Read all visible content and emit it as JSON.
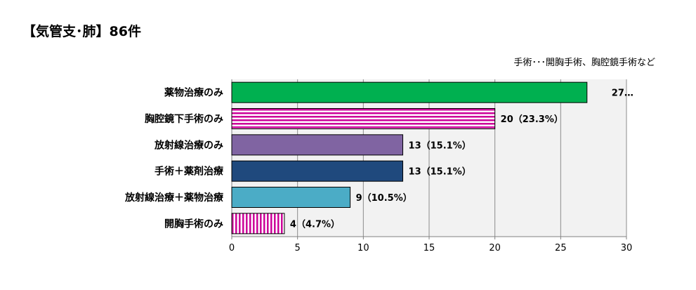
{
  "chart_data": {
    "type": "bar",
    "orientation": "horizontal",
    "title": "【気管支･肺】86件",
    "annotation": "手術･･･開胸手術、胸腔鏡手術など",
    "categories": [
      "薬物治療のみ",
      "胸腔鏡下手術のみ",
      "放射線治療のみ",
      "手術＋薬剤治療",
      "放射線治療＋薬物治療",
      "開胸手術のみ"
    ],
    "values": [
      27,
      20,
      13,
      13,
      9,
      4
    ],
    "data_labels": [
      "27…",
      "20（23.3%）",
      "13（15.1%）",
      "13（15.1%）",
      "9（10.5%）",
      "4（4.7%）"
    ],
    "bar_styles": [
      {
        "color": "#00b050",
        "pattern": "solid"
      },
      {
        "color": "#cc0099",
        "pattern": "horizontal-stripes"
      },
      {
        "color": "#8064a2",
        "pattern": "solid"
      },
      {
        "color": "#1f497d",
        "pattern": "solid"
      },
      {
        "color": "#4bacc6",
        "pattern": "solid"
      },
      {
        "color": "#cc0099",
        "pattern": "vertical-stripes"
      }
    ],
    "xlim": [
      0,
      30
    ],
    "xticks": [
      0,
      5,
      10,
      15,
      20,
      25,
      30
    ],
    "grid": true,
    "plot_background": "#f2f2f2"
  }
}
